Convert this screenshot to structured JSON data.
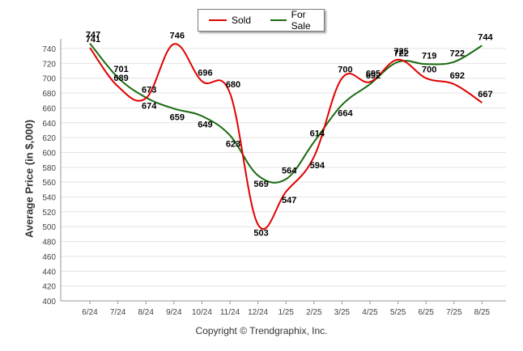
{
  "chart_data": {
    "type": "line",
    "categories": [
      "6/24",
      "7/24",
      "8/24",
      "9/24",
      "10/24",
      "11/24",
      "12/24",
      "1/25",
      "2/25",
      "3/25",
      "4/25",
      "5/25",
      "6/25",
      "7/25",
      "8/25"
    ],
    "series": [
      {
        "name": "Sold",
        "color": "#e00000",
        "values": [
          741,
          689,
          673,
          746,
          696,
          680,
          503,
          547,
          594,
          700,
          695,
          725,
          700,
          692,
          667
        ]
      },
      {
        "name": "For Sale",
        "color": "#1a6b10",
        "values": [
          747,
          701,
          674,
          659,
          649,
          623,
          569,
          564,
          614,
          664,
          692,
          722,
          719,
          722,
          744
        ]
      }
    ],
    "ylabel": "Average Price (in $,000)",
    "ylim": [
      400,
      750
    ],
    "yticks": [
      400,
      420,
      440,
      460,
      480,
      500,
      520,
      540,
      560,
      580,
      600,
      620,
      640,
      660,
      680,
      700,
      720,
      740
    ],
    "grid": true,
    "legend_position": "top-center"
  },
  "footer": {
    "copyright": "Copyright © Trendgraphix, Inc."
  }
}
